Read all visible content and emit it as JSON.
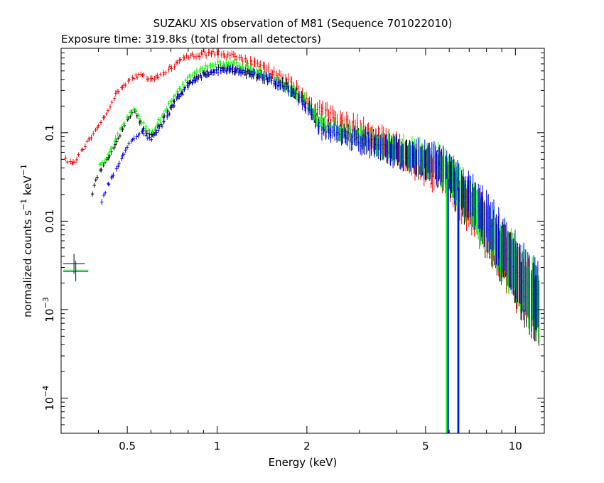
{
  "chart_data": {
    "type": "scatter",
    "title": "SUZAKU XIS observation of M81 (Sequence 701022010)",
    "subtitle": "Exposure time: 319.8ks (total from all detectors)",
    "xlabel": "Energy (keV)",
    "ylabel": {
      "text": "normalized counts s",
      "sup1": "−1",
      "mid": " keV",
      "sup2": "−1"
    },
    "x_scale": "log",
    "y_scale": "log",
    "xlim": [
      0.3,
      12.5
    ],
    "ylim": [
      4e-05,
      0.9
    ],
    "x_ticks": [
      {
        "value": 0.5,
        "label": "0.5"
      },
      {
        "value": 1,
        "label": "1"
      },
      {
        "value": 2,
        "label": "2"
      },
      {
        "value": 5,
        "label": "5"
      },
      {
        "value": 10,
        "label": "10"
      }
    ],
    "y_ticks": [
      {
        "value": 0.1,
        "label": "0.1"
      },
      {
        "value": 0.01,
        "label": "0.01"
      },
      {
        "value": 0.001,
        "label": "10",
        "sup": "−3"
      },
      {
        "value": 0.0001,
        "label": "10",
        "sup": "−4"
      }
    ],
    "grid": false,
    "series": [
      {
        "color": "#ff0000",
        "x": [
          0.31,
          0.33,
          0.35,
          0.37,
          0.4,
          0.43,
          0.46,
          0.5,
          0.55,
          0.6,
          0.65,
          0.7,
          0.75,
          0.8,
          0.85,
          0.9,
          0.95,
          1.0,
          1.1,
          1.2,
          1.3,
          1.4,
          1.5,
          1.6,
          1.7,
          1.8,
          1.9,
          2.0,
          2.2,
          2.4,
          2.6,
          3.0,
          3.5,
          4.0,
          4.5,
          5.0,
          5.5,
          5.9,
          6.3,
          6.7,
          7.0,
          7.5,
          8.0,
          9.0,
          10.0,
          11.0,
          12.0
        ],
        "y": [
          0.05,
          0.045,
          0.06,
          0.08,
          0.12,
          0.18,
          0.28,
          0.38,
          0.45,
          0.4,
          0.45,
          0.55,
          0.65,
          0.72,
          0.76,
          0.78,
          0.79,
          0.78,
          0.75,
          0.7,
          0.62,
          0.55,
          0.5,
          0.45,
          0.4,
          0.35,
          0.28,
          0.22,
          0.18,
          0.16,
          0.14,
          0.11,
          0.085,
          0.065,
          0.052,
          0.042,
          0.035,
          0.03,
          0.022,
          0.018,
          0.015,
          0.011,
          0.008,
          0.0045,
          0.0025,
          0.0015,
          0.001
        ]
      },
      {
        "color": "#000000",
        "x": [
          0.38,
          0.4,
          0.43,
          0.46,
          0.5,
          0.53,
          0.56,
          0.6,
          0.65,
          0.7,
          0.75,
          0.8,
          0.9,
          1.0,
          1.1,
          1.2,
          1.3,
          1.4,
          1.5,
          1.6,
          1.7,
          1.8,
          1.9,
          2.0,
          2.2,
          2.5,
          3.0,
          3.5,
          4.0,
          4.5,
          5.0,
          5.5,
          5.8,
          6.2,
          6.6,
          7.0,
          7.5,
          8.0,
          9.0,
          10.0,
          11.0,
          12.0
        ],
        "y": [
          0.02,
          0.035,
          0.05,
          0.08,
          0.14,
          0.18,
          0.12,
          0.09,
          0.13,
          0.2,
          0.28,
          0.36,
          0.46,
          0.52,
          0.52,
          0.5,
          0.47,
          0.43,
          0.4,
          0.36,
          0.33,
          0.29,
          0.25,
          0.2,
          0.12,
          0.1,
          0.085,
          0.072,
          0.062,
          0.055,
          0.048,
          0.042,
          0.038,
          0.026,
          0.02,
          0.016,
          0.012,
          0.008,
          0.0045,
          0.0025,
          0.0015,
          0.001
        ]
      },
      {
        "color": "#00ff00",
        "x": [
          0.4,
          0.43,
          0.46,
          0.5,
          0.53,
          0.56,
          0.6,
          0.65,
          0.7,
          0.75,
          0.8,
          0.9,
          1.0,
          1.1,
          1.2,
          1.3,
          1.4,
          1.5,
          1.6,
          1.7,
          1.8,
          1.9,
          2.0,
          2.2,
          2.5,
          3.0,
          3.5,
          4.0,
          4.5,
          5.0,
          5.5,
          5.8,
          6.2,
          6.6,
          7.0,
          7.5,
          8.0,
          9.0,
          10.0,
          11.0,
          12.0
        ],
        "y": [
          0.04,
          0.055,
          0.09,
          0.15,
          0.19,
          0.13,
          0.1,
          0.15,
          0.23,
          0.32,
          0.41,
          0.53,
          0.6,
          0.6,
          0.57,
          0.52,
          0.47,
          0.43,
          0.38,
          0.34,
          0.3,
          0.26,
          0.21,
          0.13,
          0.11,
          0.09,
          0.076,
          0.065,
          0.058,
          0.05,
          0.044,
          0.04,
          0.028,
          0.022,
          0.017,
          0.013,
          0.009,
          0.005,
          0.0028,
          0.0017,
          0.0011
        ]
      },
      {
        "color": "#0000ff",
        "x": [
          0.41,
          0.44,
          0.47,
          0.5,
          0.53,
          0.56,
          0.6,
          0.65,
          0.7,
          0.75,
          0.8,
          0.9,
          1.0,
          1.1,
          1.2,
          1.3,
          1.4,
          1.5,
          1.6,
          1.7,
          1.8,
          1.9,
          2.0,
          2.2,
          2.5,
          3.0,
          3.5,
          4.0,
          4.5,
          5.0,
          5.5,
          5.8,
          6.2,
          6.6,
          7.0,
          7.5,
          8.0,
          9.0,
          10.0,
          11.0,
          12.0
        ],
        "y": [
          0.017,
          0.03,
          0.045,
          0.07,
          0.09,
          0.1,
          0.085,
          0.12,
          0.18,
          0.26,
          0.34,
          0.45,
          0.5,
          0.52,
          0.5,
          0.47,
          0.44,
          0.4,
          0.36,
          0.32,
          0.28,
          0.24,
          0.19,
          0.11,
          0.095,
          0.08,
          0.068,
          0.06,
          0.055,
          0.05,
          0.045,
          0.042,
          0.03,
          0.024,
          0.019,
          0.014,
          0.01,
          0.0055,
          0.003,
          0.0018,
          0.0012
        ]
      }
    ],
    "legend_crosses": [
      {
        "color": "#000000",
        "x": [
          0.305,
          0.36
        ],
        "y": 0.0033
      },
      {
        "color": "#00ff00",
        "x": [
          0.305,
          0.37
        ],
        "y": 0.0028
      },
      {
        "color": "#0000ff",
        "x": [
          0.305,
          0.37
        ],
        "y": 0.0027
      }
    ],
    "drop_lines": [
      {
        "color": "#00ff00",
        "x": 5.88,
        "y_top": 0.03
      },
      {
        "color": "#0000ff",
        "x": 5.95,
        "y_top": 0.03
      },
      {
        "color": "#00ff00",
        "x": 6.4,
        "y_top": 0.022
      },
      {
        "color": "#0000ff",
        "x": 6.45,
        "y_top": 0.024
      }
    ]
  }
}
